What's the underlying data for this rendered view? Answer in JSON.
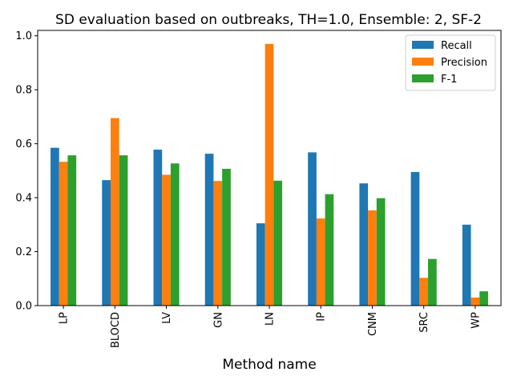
{
  "chart_data": {
    "type": "bar",
    "title": "SD evaluation based on outbreaks, TH=1.0, Ensemble: 2, SF-2",
    "xlabel": "Method name",
    "ylabel": "",
    "ylim": [
      0,
      1.02
    ],
    "yticks": [
      "0.0",
      "0.2",
      "0.4",
      "0.6",
      "0.8",
      "1.0"
    ],
    "legend_position": "top-right",
    "grid": false,
    "categories": [
      "LP",
      "BLOCD",
      "LV",
      "GN",
      "LN",
      "IP",
      "CNM",
      "SRC",
      "WP"
    ],
    "series": [
      {
        "name": "Recall",
        "color": "#1f77b4",
        "values": [
          0.585,
          0.465,
          0.578,
          0.563,
          0.305,
          0.568,
          0.453,
          0.495,
          0.3
        ]
      },
      {
        "name": "Precision",
        "color": "#ff7f0e",
        "values": [
          0.533,
          0.695,
          0.485,
          0.462,
          0.97,
          0.323,
          0.353,
          0.103,
          0.03
        ]
      },
      {
        "name": "F-1",
        "color": "#2ca02c",
        "values": [
          0.557,
          0.557,
          0.527,
          0.507,
          0.463,
          0.413,
          0.398,
          0.173,
          0.053
        ]
      }
    ]
  }
}
